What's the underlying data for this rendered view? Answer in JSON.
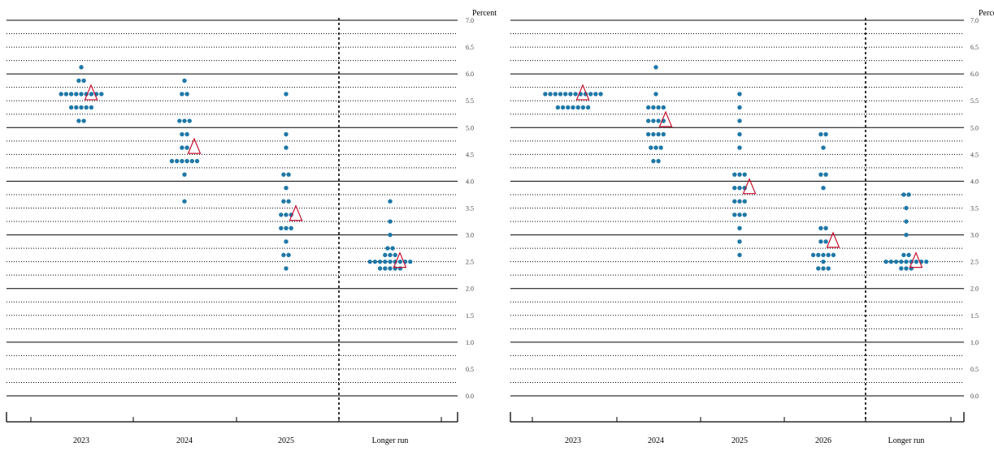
{
  "chart_data": [
    {
      "type": "scatter",
      "ylabel": "Percent",
      "ylim": [
        0,
        7
      ],
      "yticks": [
        "7.0",
        "6.5",
        "6.0",
        "5.5",
        "5.0",
        "4.5",
        "4.0",
        "3.5",
        "3.0",
        "2.5",
        "2.0",
        "1.5",
        "1.0",
        "0.5",
        "0.0"
      ],
      "categories": [
        "2023",
        "2024",
        "2025",
        "Longer run"
      ],
      "marker_colors": {
        "participant": "#1f78a8",
        "median": "#c8102e"
      },
      "projections": [
        {
          "category": "2023",
          "points": [
            {
              "value": 6.125,
              "count": 1
            },
            {
              "value": 5.875,
              "count": 2
            },
            {
              "value": 5.625,
              "count": 9
            },
            {
              "value": 5.375,
              "count": 5
            },
            {
              "value": 5.125,
              "count": 2
            }
          ],
          "median": 5.625
        },
        {
          "category": "2024",
          "points": [
            {
              "value": 5.875,
              "count": 1
            },
            {
              "value": 5.625,
              "count": 2
            },
            {
              "value": 5.125,
              "count": 3
            },
            {
              "value": 4.875,
              "count": 2
            },
            {
              "value": 4.625,
              "count": 2
            },
            {
              "value": 4.375,
              "count": 6
            },
            {
              "value": 4.125,
              "count": 1
            },
            {
              "value": 3.625,
              "count": 1
            }
          ],
          "median": 4.625
        },
        {
          "category": "2025",
          "points": [
            {
              "value": 5.625,
              "count": 1
            },
            {
              "value": 4.875,
              "count": 1
            },
            {
              "value": 4.625,
              "count": 1
            },
            {
              "value": 4.125,
              "count": 2
            },
            {
              "value": 3.875,
              "count": 1
            },
            {
              "value": 3.625,
              "count": 2
            },
            {
              "value": 3.375,
              "count": 3
            },
            {
              "value": 3.125,
              "count": 3
            },
            {
              "value": 2.875,
              "count": 1
            },
            {
              "value": 2.625,
              "count": 2
            },
            {
              "value": 2.375,
              "count": 1
            }
          ],
          "median": 3.375
        },
        {
          "category": "Longer run",
          "points": [
            {
              "value": 3.625,
              "count": 1
            },
            {
              "value": 3.25,
              "count": 1
            },
            {
              "value": 3.0,
              "count": 1
            },
            {
              "value": 2.75,
              "count": 2
            },
            {
              "value": 2.625,
              "count": 3
            },
            {
              "value": 2.5,
              "count": 9
            },
            {
              "value": 2.375,
              "count": 5
            }
          ],
          "median": 2.5
        }
      ]
    },
    {
      "type": "scatter",
      "ylabel": "Percent",
      "ylim": [
        0,
        7
      ],
      "yticks": [
        "7.0",
        "6.5",
        "6.0",
        "5.5",
        "5.0",
        "4.5",
        "4.0",
        "3.5",
        "3.0",
        "2.5",
        "2.0",
        "1.5",
        "1.0",
        "0.5",
        "0.0"
      ],
      "categories": [
        "2023",
        "2024",
        "2025",
        "2026",
        "Longer run"
      ],
      "marker_colors": {
        "participant": "#1f78a8",
        "median": "#c8102e"
      },
      "projections": [
        {
          "category": "2023",
          "points": [
            {
              "value": 5.625,
              "count": 12
            },
            {
              "value": 5.375,
              "count": 7
            }
          ],
          "median": 5.625
        },
        {
          "category": "2024",
          "points": [
            {
              "value": 6.125,
              "count": 1
            },
            {
              "value": 5.625,
              "count": 1
            },
            {
              "value": 5.375,
              "count": 4
            },
            {
              "value": 5.125,
              "count": 4
            },
            {
              "value": 4.875,
              "count": 4
            },
            {
              "value": 4.625,
              "count": 3
            },
            {
              "value": 4.375,
              "count": 2
            }
          ],
          "median": 5.125
        },
        {
          "category": "2025",
          "points": [
            {
              "value": 5.625,
              "count": 1
            },
            {
              "value": 5.375,
              "count": 1
            },
            {
              "value": 5.125,
              "count": 1
            },
            {
              "value": 4.875,
              "count": 1
            },
            {
              "value": 4.625,
              "count": 1
            },
            {
              "value": 4.125,
              "count": 3
            },
            {
              "value": 3.875,
              "count": 3
            },
            {
              "value": 3.625,
              "count": 3
            },
            {
              "value": 3.375,
              "count": 3
            },
            {
              "value": 3.125,
              "count": 1
            },
            {
              "value": 2.875,
              "count": 1
            },
            {
              "value": 2.625,
              "count": 1
            }
          ],
          "median": 3.875
        },
        {
          "category": "2026",
          "points": [
            {
              "value": 4.875,
              "count": 2
            },
            {
              "value": 4.625,
              "count": 1
            },
            {
              "value": 4.125,
              "count": 2
            },
            {
              "value": 3.875,
              "count": 1
            },
            {
              "value": 3.125,
              "count": 2
            },
            {
              "value": 2.875,
              "count": 2
            },
            {
              "value": 2.625,
              "count": 5
            },
            {
              "value": 2.5,
              "count": 1
            },
            {
              "value": 2.375,
              "count": 3
            }
          ],
          "median": 2.875
        },
        {
          "category": "Longer run",
          "points": [
            {
              "value": 3.75,
              "count": 2
            },
            {
              "value": 3.5,
              "count": 1
            },
            {
              "value": 3.25,
              "count": 1
            },
            {
              "value": 3.0,
              "count": 1
            },
            {
              "value": 2.625,
              "count": 2
            },
            {
              "value": 2.5,
              "count": 9
            },
            {
              "value": 2.375,
              "count": 3
            }
          ],
          "median": 2.5
        }
      ]
    }
  ]
}
